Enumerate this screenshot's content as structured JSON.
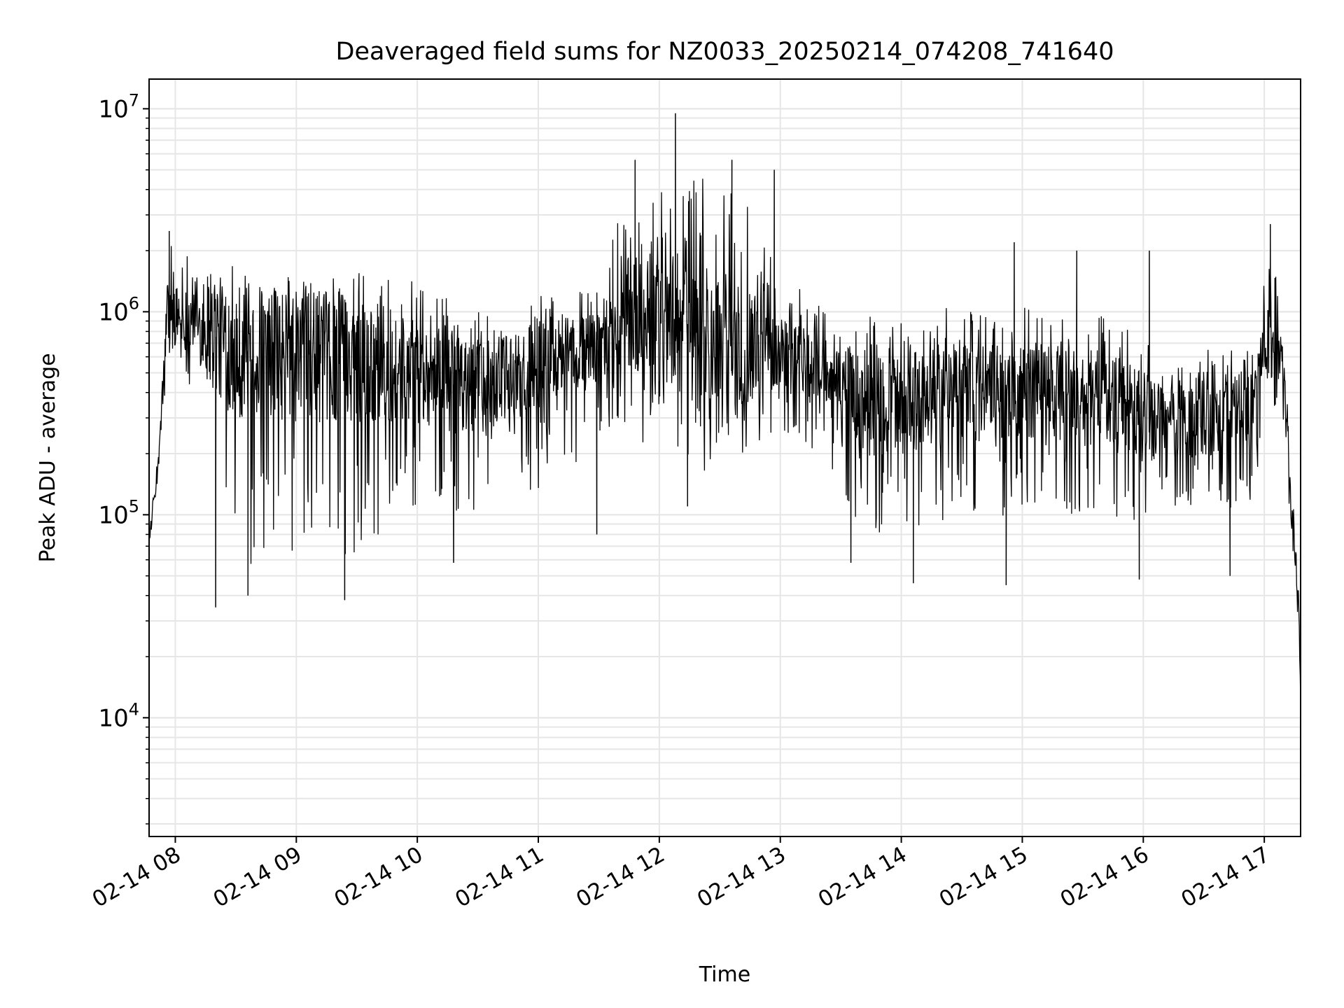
{
  "chart_data": {
    "type": "line",
    "title": "Deaveraged field sums for NZ0033_20250214_074208_741640",
    "xlabel": "Time",
    "ylabel": "Peak ADU - average",
    "yscale": "log",
    "ylim": [
      2600,
      14000000
    ],
    "xlim": [
      "2025-02-14 07:47",
      "2025-02-14 17:18"
    ],
    "grid": true,
    "line_color": "#000000",
    "grid_color": "#e6e6e6",
    "x_ticks": [
      {
        "value": "2025-02-14 08:00",
        "label": "02-14 08"
      },
      {
        "value": "2025-02-14 09:00",
        "label": "02-14 09"
      },
      {
        "value": "2025-02-14 10:00",
        "label": "02-14 10"
      },
      {
        "value": "2025-02-14 11:00",
        "label": "02-14 11"
      },
      {
        "value": "2025-02-14 12:00",
        "label": "02-14 12"
      },
      {
        "value": "2025-02-14 13:00",
        "label": "02-14 13"
      },
      {
        "value": "2025-02-14 14:00",
        "label": "02-14 14"
      },
      {
        "value": "2025-02-14 15:00",
        "label": "02-14 15"
      },
      {
        "value": "2025-02-14 16:00",
        "label": "02-14 16"
      },
      {
        "value": "2025-02-14 17:00",
        "label": "02-14 17"
      }
    ],
    "y_ticks": [
      {
        "value": 10000,
        "base": "10",
        "exp": "4"
      },
      {
        "value": 100000,
        "base": "10",
        "exp": "5"
      },
      {
        "value": 1000000,
        "base": "10",
        "exp": "6"
      },
      {
        "value": 10000000,
        "base": "10",
        "exp": "7"
      }
    ],
    "series": [
      {
        "envelope": [
          {
            "t": "2025-02-14 07:47",
            "median": 75000,
            "low": 65000,
            "high": 90000
          },
          {
            "t": "2025-02-14 07:52",
            "median": 200000,
            "low": 150000,
            "high": 260000
          },
          {
            "t": "2025-02-14 07:56",
            "median": 1000000,
            "low": 500000,
            "high": 2500000
          },
          {
            "t": "2025-02-14 08:10",
            "median": 900000,
            "low": 400000,
            "high": 1800000
          },
          {
            "t": "2025-02-14 08:16",
            "median": 800000,
            "low": 90000,
            "high": 1600000
          },
          {
            "t": "2025-02-14 08:30",
            "median": 650000,
            "low": 50000,
            "high": 1700000
          },
          {
            "t": "2025-02-14 09:00",
            "median": 600000,
            "low": 55000,
            "high": 1600000
          },
          {
            "t": "2025-02-14 09:30",
            "median": 600000,
            "low": 60000,
            "high": 1600000
          },
          {
            "t": "2025-02-14 10:00",
            "median": 500000,
            "low": 110000,
            "high": 1400000
          },
          {
            "t": "2025-02-14 10:30",
            "median": 400000,
            "low": 90000,
            "high": 1000000
          },
          {
            "t": "2025-02-14 11:00",
            "median": 550000,
            "low": 130000,
            "high": 1200000
          },
          {
            "t": "2025-02-14 11:30",
            "median": 650000,
            "low": 200000,
            "high": 1300000
          },
          {
            "t": "2025-02-14 11:45",
            "median": 1000000,
            "low": 250000,
            "high": 4500000
          },
          {
            "t": "2025-02-14 12:10",
            "median": 900000,
            "low": 150000,
            "high": 5000000
          },
          {
            "t": "2025-02-14 12:40",
            "median": 700000,
            "low": 180000,
            "high": 4500000
          },
          {
            "t": "2025-02-14 13:00",
            "median": 650000,
            "low": 250000,
            "high": 1500000
          },
          {
            "t": "2025-02-14 13:30",
            "median": 500000,
            "low": 150000,
            "high": 1000000
          },
          {
            "t": "2025-02-14 13:40",
            "median": 350000,
            "low": 70000,
            "high": 950000
          },
          {
            "t": "2025-02-14 14:00",
            "median": 350000,
            "low": 80000,
            "high": 1000000
          },
          {
            "t": "2025-02-14 14:30",
            "median": 400000,
            "low": 90000,
            "high": 1100000
          },
          {
            "t": "2025-02-14 15:00",
            "median": 400000,
            "low": 100000,
            "high": 1100000
          },
          {
            "t": "2025-02-14 15:30",
            "median": 400000,
            "low": 90000,
            "high": 1100000
          },
          {
            "t": "2025-02-14 16:00",
            "median": 300000,
            "low": 80000,
            "high": 800000
          },
          {
            "t": "2025-02-14 16:30",
            "median": 300000,
            "low": 90000,
            "high": 700000
          },
          {
            "t": "2025-02-14 16:55",
            "median": 350000,
            "low": 120000,
            "high": 700000
          },
          {
            "t": "2025-02-14 17:02",
            "median": 900000,
            "low": 400000,
            "high": 2700000
          },
          {
            "t": "2025-02-14 17:10",
            "median": 500000,
            "low": 250000,
            "high": 800000
          },
          {
            "t": "2025-02-14 17:13",
            "median": 120000,
            "low": 80000,
            "high": 180000
          },
          {
            "t": "2025-02-14 17:17",
            "median": 40000,
            "low": 25000,
            "high": 60000
          },
          {
            "t": "2025-02-14 17:18",
            "median": 11000,
            "low": 10000,
            "high": 12000
          }
        ],
        "spikes": [
          {
            "t": "2025-02-14 07:57",
            "value": 2500000
          },
          {
            "t": "2025-02-14 08:20",
            "value": 35000
          },
          {
            "t": "2025-02-14 08:36",
            "value": 40000
          },
          {
            "t": "2025-02-14 09:24",
            "value": 38000
          },
          {
            "t": "2025-02-14 10:18",
            "value": 58000
          },
          {
            "t": "2025-02-14 11:29",
            "value": 80000
          },
          {
            "t": "2025-02-14 11:48",
            "value": 5600000
          },
          {
            "t": "2025-02-14 12:08",
            "value": 9500000
          },
          {
            "t": "2025-02-14 12:14",
            "value": 110000
          },
          {
            "t": "2025-02-14 12:36",
            "value": 5600000
          },
          {
            "t": "2025-02-14 12:57",
            "value": 5000000
          },
          {
            "t": "2025-02-14 13:35",
            "value": 58000
          },
          {
            "t": "2025-02-14 14:06",
            "value": 46000
          },
          {
            "t": "2025-02-14 14:52",
            "value": 45000
          },
          {
            "t": "2025-02-14 14:56",
            "value": 2200000
          },
          {
            "t": "2025-02-14 15:27",
            "value": 2000000
          },
          {
            "t": "2025-02-14 15:58",
            "value": 48000
          },
          {
            "t": "2025-02-14 16:03",
            "value": 2000000
          },
          {
            "t": "2025-02-14 16:43",
            "value": 50000
          },
          {
            "t": "2025-02-14 17:03",
            "value": 2700000
          }
        ]
      }
    ]
  }
}
